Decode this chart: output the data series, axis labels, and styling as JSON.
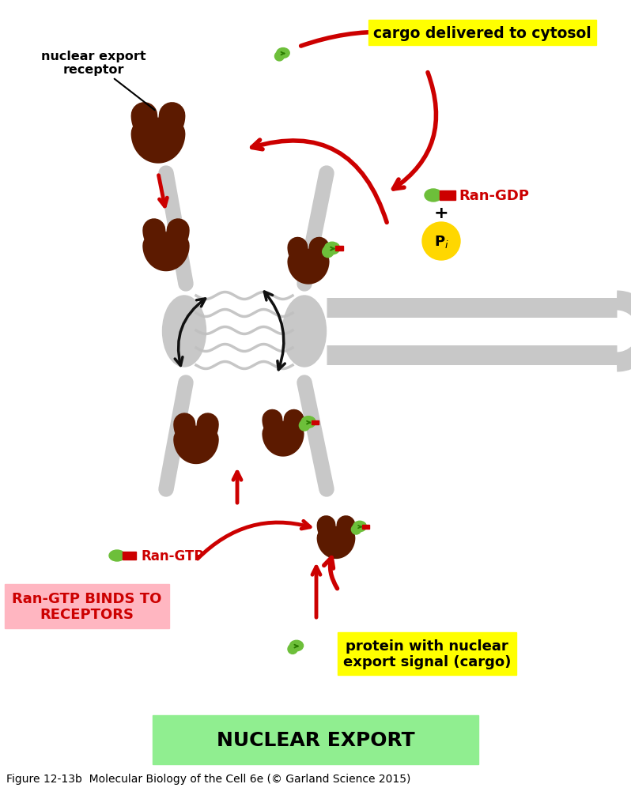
{
  "bg_color": "#ffffff",
  "title": "NUCLEAR EXPORT",
  "title_box_color": "#90EE90",
  "title_fontsize": 18,
  "caption": "Figure 12-13b  Molecular Biology of the Cell 6e (© Garland Science 2015)",
  "caption_fontsize": 10,
  "label_nuclear_export_receptor": "nuclear export\nreceptor",
  "label_cargo_cytosol": "cargo delivered to cytosol",
  "label_ran_gdp": "Ran-GDP",
  "label_ran_gtp": "Ran-GTP",
  "label_ran_gtp_binds": "Ran-GTP BINDS TO\nRECEPTORS",
  "label_protein_cargo": "protein with nuclear\nexport signal (cargo)",
  "receptor_color": "#5C1A00",
  "cargo_green_color": "#6DBF3A",
  "cargo_red_color": "#CC0000",
  "arrow_red_color": "#CC0000",
  "arrow_black_color": "#111111",
  "pore_gray_color": "#A0A0A0",
  "pore_light_color": "#C8C8C8",
  "ran_gtp_box_color": "#FFB6C1",
  "cargo_cytosol_box_color": "#FFFF00",
  "protein_cargo_box_color": "#FFFF00",
  "pi_color": "#FFD700",
  "plus_color": "#000000"
}
